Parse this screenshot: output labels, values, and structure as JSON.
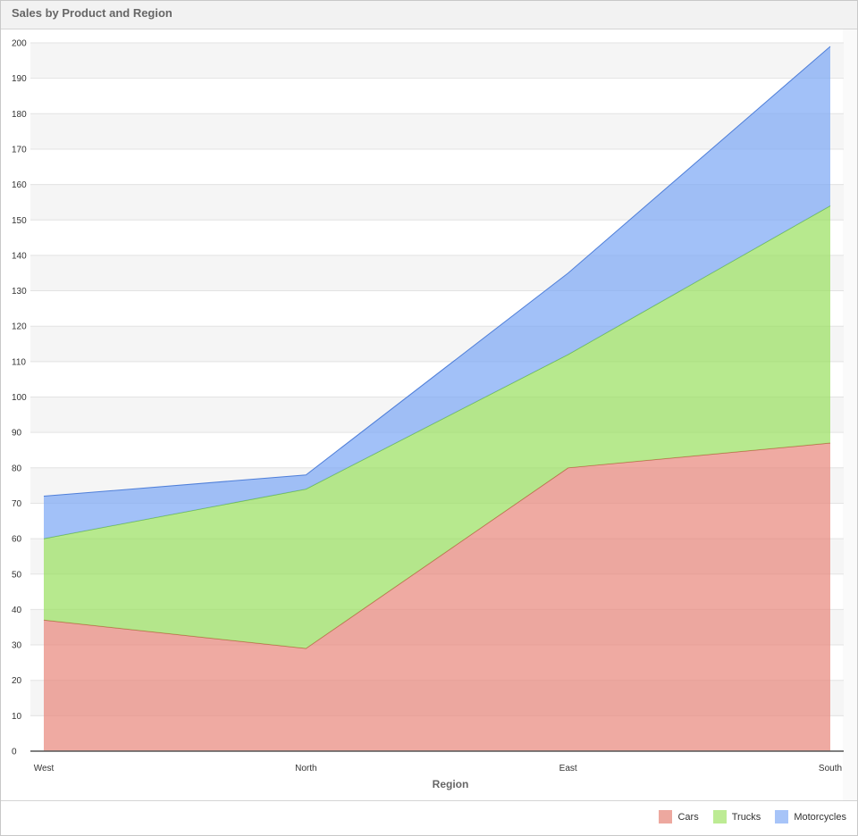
{
  "panel": {
    "title": "Sales by Product and Region"
  },
  "chart_data": {
    "type": "area",
    "stacked": true,
    "title": "Sales by Product and Region",
    "xlabel": "Region",
    "ylabel": "",
    "categories": [
      "West",
      "North",
      "East",
      "South"
    ],
    "ylim": [
      0,
      200
    ],
    "ytick_step": 10,
    "grid": true,
    "alternating_bands": true,
    "legend_position": "bottom-right",
    "series": [
      {
        "name": "Cars",
        "values": [
          37,
          29,
          80,
          87
        ],
        "fill": "#e8867a",
        "line": "#c0584a"
      },
      {
        "name": "Trucks",
        "values": [
          23,
          45,
          32,
          67
        ],
        "fill": "#99e05e",
        "line": "#6cbf3e"
      },
      {
        "name": "Motorcycles",
        "values": [
          12,
          4,
          23,
          45
        ],
        "fill": "#7aa6f5",
        "line": "#4f7fd9"
      }
    ]
  },
  "legend": {
    "items": [
      {
        "label": "Cars",
        "color": "#eda89f"
      },
      {
        "label": "Trucks",
        "color": "#bdeb94"
      },
      {
        "label": "Motorcycles",
        "color": "#a7c4f8"
      }
    ]
  }
}
